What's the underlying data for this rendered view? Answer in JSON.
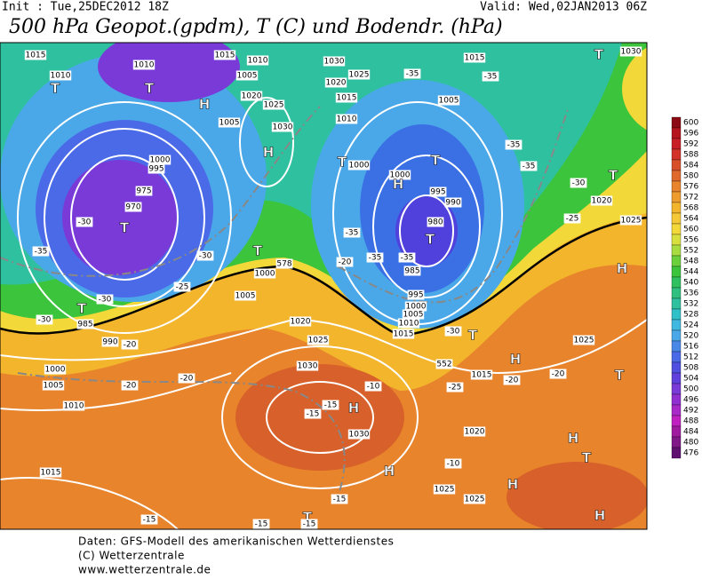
{
  "header": {
    "init": "Init : Tue,25DEC2012 18Z",
    "valid": "Valid: Wed,02JAN2013 06Z",
    "title": "500 hPa Geopot.(gpdm), T (C) und Bodendr. (hPa)"
  },
  "legend": {
    "levels": [
      600,
      596,
      592,
      588,
      584,
      580,
      576,
      572,
      568,
      564,
      560,
      556,
      552,
      548,
      544,
      540,
      536,
      532,
      528,
      524,
      520,
      516,
      512,
      508,
      504,
      500,
      496,
      492,
      488,
      484,
      480,
      476
    ],
    "colors": [
      "#8c0a14",
      "#b4141e",
      "#c81e28",
      "#d2322a",
      "#d8502a",
      "#e06a2c",
      "#e8842c",
      "#ee9c2e",
      "#f2b52c",
      "#f4c836",
      "#f3d83a",
      "#d8e040",
      "#a8dc40",
      "#6cd03c",
      "#3cc43c",
      "#30c060",
      "#2fc080",
      "#2fc0a0",
      "#30c0c8",
      "#40b8e0",
      "#4aa8e8",
      "#4a88e8",
      "#4a6ae8",
      "#5050e0",
      "#6040dc",
      "#7a3ad8",
      "#9030d0",
      "#a828c8",
      "#c020c0",
      "#a01aa0",
      "#801888",
      "#601070"
    ]
  },
  "map_labels": [
    "1015",
    "1010",
    "T",
    "1010",
    "T",
    "1015",
    "1010",
    "1005",
    "H",
    "1020",
    "1025",
    "1030",
    "H",
    "1005",
    "1000",
    "995",
    "975",
    "970",
    "T",
    "-30",
    "-35",
    "-30",
    "-25",
    "T",
    "1000",
    "1005",
    "-30",
    "T",
    "985",
    "990",
    "-20",
    "1000",
    "1005",
    "-20",
    "-20",
    "1010",
    "1015",
    "-15",
    "T",
    "-15",
    "1030",
    "1025",
    "1020",
    "1015",
    "1010",
    "-35",
    "-35",
    "1015",
    "1005",
    "T",
    "1000",
    "1000",
    "H",
    "T",
    "-35",
    "-35",
    "995",
    "990",
    "980",
    "T",
    "-35",
    "-20",
    "-35",
    "-35",
    "985",
    "995",
    "1000",
    "1005",
    "1010",
    "1015",
    "-30",
    "T",
    "1020",
    "1025",
    "1030",
    "-10",
    "-15",
    "-15",
    "H",
    "1030",
    "1020",
    "-10",
    "1025",
    "1025",
    "H",
    "H",
    "-15",
    "-15",
    "H",
    "1015",
    "-20",
    "-20",
    "1025",
    "T",
    "H",
    "T",
    "H",
    "1020",
    "1025",
    "-30",
    "-25",
    "T",
    "H",
    "T",
    "1030",
    "578",
    "552",
    "-25",
    "-30"
  ],
  "footer": [
    "Daten: GFS-Modell des amerikanischen Wetterdienstes",
    "(C) Wetterzentrale",
    "www.wetterzentrale.de"
  ]
}
